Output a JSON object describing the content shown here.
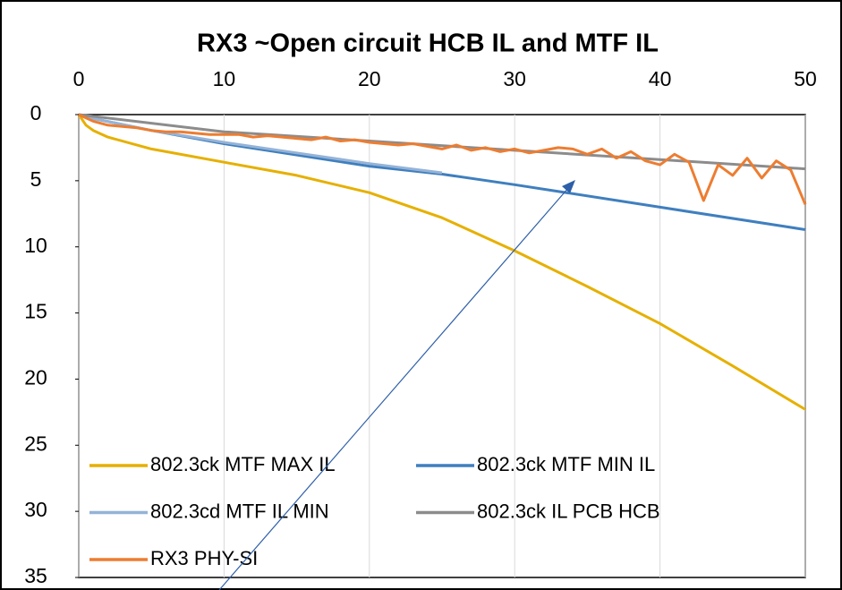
{
  "chart_data": {
    "type": "line",
    "title": "RX3 ~Open circuit HCB IL and MTF IL",
    "xlim": [
      0,
      50
    ],
    "xticks": [
      0,
      10,
      20,
      30,
      40,
      50
    ],
    "ylim": [
      0,
      35
    ],
    "yticks": [
      0,
      5,
      10,
      15,
      20,
      25,
      30,
      35
    ],
    "y_inverted": true,
    "x_axis_position": "top",
    "grid": true,
    "series": [
      {
        "name": "802.3ck MTF MAX IL",
        "color": "#e6b000",
        "x": [
          0,
          0.5,
          1,
          2,
          5,
          10,
          15,
          20,
          25,
          30,
          35,
          40,
          45,
          50
        ],
        "values": [
          0,
          0.8,
          1.2,
          1.7,
          2.6,
          3.6,
          4.6,
          5.9,
          7.8,
          10.3,
          13,
          15.8,
          19,
          22.3
        ]
      },
      {
        "name": "802.3ck MTF MIN IL",
        "color": "#3f7fbf",
        "x": [
          0,
          1,
          5,
          10,
          20,
          25,
          30,
          40,
          50
        ],
        "values": [
          0,
          0.3,
          1.2,
          2.2,
          3.9,
          4.5,
          5.3,
          7,
          8.7
        ]
      },
      {
        "name": "802.3cd MTF IL MIN",
        "color": "#95b3d7",
        "x": [
          0,
          1,
          5,
          10,
          15,
          20,
          25
        ],
        "values": [
          0,
          0.3,
          1.2,
          2.1,
          2.9,
          3.7,
          4.4
        ]
      },
      {
        "name": "802.3ck IL PCB HCB",
        "color": "#8c8c8c",
        "x": [
          0,
          10,
          20,
          30,
          40,
          50
        ],
        "values": [
          0,
          1.3,
          2,
          2.7,
          3.4,
          4.1
        ]
      },
      {
        "name": "RX3 PHY-SI",
        "color": "#ed7d31",
        "x": [
          0,
          1,
          2,
          3,
          4,
          5,
          6,
          7,
          8,
          9,
          10,
          11,
          12,
          13,
          14,
          15,
          16,
          17,
          18,
          19,
          20,
          21,
          22,
          23,
          24,
          25,
          26,
          27,
          28,
          29,
          30,
          31,
          32,
          33,
          34,
          35,
          36,
          37,
          38,
          39,
          40,
          41,
          42,
          43,
          44,
          45,
          46,
          47,
          48,
          49,
          50
        ],
        "values": [
          0,
          0.5,
          0.8,
          0.9,
          1.0,
          1.2,
          1.3,
          1.3,
          1.4,
          1.5,
          1.5,
          1.5,
          1.7,
          1.6,
          1.7,
          1.8,
          1.9,
          1.7,
          2.0,
          1.9,
          2.1,
          2.2,
          2.3,
          2.2,
          2.4,
          2.6,
          2.3,
          2.7,
          2.5,
          2.8,
          2.6,
          2.9,
          2.7,
          2.5,
          2.6,
          3.0,
          2.6,
          3.3,
          2.8,
          3.5,
          3.8,
          3.0,
          3.6,
          6.5,
          3.8,
          4.6,
          3.3,
          4.8,
          3.5,
          4.2,
          6.8
        ]
      }
    ]
  }
}
